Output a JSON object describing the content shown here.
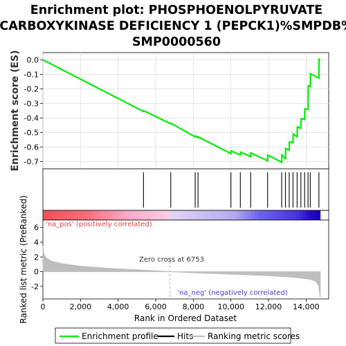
{
  "title_lines": [
    "Enrichment plot: PHOSPHOENOLPYRUVATE",
    "CARBOXYKINASE DEFICIENCY 1 (PEPCK1)%SMPDB%",
    "SMP0000560"
  ],
  "colors": {
    "enrichment_line": "#00ee00",
    "hits": "#000000",
    "metric_fill": "#bebebe",
    "pos_label": "#e04040",
    "neg_label": "#4040d0"
  },
  "chart_data": [
    {
      "type": "line",
      "name": "enrichment-profile",
      "ylabel": "Enrichment score (ES)",
      "xlim": [
        0,
        15200
      ],
      "ylim": [
        -0.75,
        0.05
      ],
      "y_ticks": [
        "0.0",
        "-0.1",
        "-0.2",
        "-0.3",
        "-0.4",
        "-0.5",
        "-0.6",
        "-0.7"
      ],
      "y_tick_values": [
        0.0,
        -0.1,
        -0.2,
        -0.3,
        -0.4,
        -0.5,
        -0.6,
        -0.7
      ],
      "grid": true,
      "points": [
        [
          0,
          0.0
        ],
        [
          5350,
          -0.355
        ],
        [
          5360,
          -0.35
        ],
        [
          6800,
          -0.44
        ],
        [
          6810,
          -0.436
        ],
        [
          8100,
          -0.53
        ],
        [
          8110,
          -0.524
        ],
        [
          8250,
          -0.535
        ],
        [
          8260,
          -0.53
        ],
        [
          10000,
          -0.645
        ],
        [
          10010,
          -0.626
        ],
        [
          10500,
          -0.655
        ],
        [
          10510,
          -0.635
        ],
        [
          11050,
          -0.665
        ],
        [
          11060,
          -0.64
        ],
        [
          11950,
          -0.695
        ],
        [
          11960,
          -0.655
        ],
        [
          12700,
          -0.705
        ],
        [
          12710,
          -0.655
        ],
        [
          12900,
          -0.68
        ],
        [
          12910,
          -0.61
        ],
        [
          13100,
          -0.62
        ],
        [
          13110,
          -0.565
        ],
        [
          13300,
          -0.57
        ],
        [
          13310,
          -0.51
        ],
        [
          13520,
          -0.53
        ],
        [
          13530,
          -0.462
        ],
        [
          13720,
          -0.47
        ],
        [
          13730,
          -0.405
        ],
        [
          13920,
          -0.41
        ],
        [
          13930,
          -0.338
        ],
        [
          14100,
          -0.34
        ],
        [
          14110,
          -0.18
        ],
        [
          14220,
          -0.185
        ],
        [
          14230,
          -0.095
        ],
        [
          14680,
          -0.125
        ],
        [
          14690,
          0.005
        ],
        [
          14750,
          0.0
        ]
      ]
    },
    {
      "type": "bar",
      "name": "hits",
      "hit_positions": [
        5350,
        6800,
        8100,
        8250,
        10000,
        10500,
        11050,
        11950,
        12700,
        12900,
        13100,
        13300,
        13520,
        13720,
        13920,
        14100,
        14220,
        14680
      ]
    },
    {
      "type": "area",
      "name": "ranking-metric",
      "xlabel": "Rank in Ordered Dataset",
      "ylabel": "Ranked list metric (PreRanked)",
      "xlim": [
        0,
        15200
      ],
      "ylim": [
        -3.7,
        7
      ],
      "x_ticks": [
        "0",
        "2,000",
        "4,000",
        "6,000",
        "8,000",
        "10,000",
        "12,000",
        "14,000"
      ],
      "x_tick_values": [
        0,
        2000,
        4000,
        6000,
        8000,
        10000,
        12000,
        14000
      ],
      "y_ticks": [
        "6",
        "4",
        "2",
        "0",
        "-2"
      ],
      "y_tick_values": [
        6,
        4,
        2,
        0,
        -2
      ],
      "zero_cross": 6753,
      "x": [
        0,
        50,
        200,
        500,
        1000,
        2000,
        3000,
        4000,
        5000,
        6000,
        6753,
        8000,
        9000,
        10000,
        11000,
        12000,
        13000,
        13500,
        14000,
        14300,
        14500,
        14650,
        14750
      ],
      "values": [
        3.5,
        2.4,
        1.8,
        1.4,
        1.1,
        0.75,
        0.55,
        0.38,
        0.25,
        0.12,
        0.0,
        -0.15,
        -0.25,
        -0.35,
        -0.45,
        -0.55,
        -0.7,
        -0.8,
        -0.95,
        -1.1,
        -1.3,
        -1.8,
        -3.5
      ]
    }
  ],
  "labels": {
    "x_axis": "Rank in Ordered Dataset",
    "es_axis": "Enrichment score (ES)",
    "metric_axis": "Ranked list metric (PreRanked)",
    "pos_label": "'na_pos' (positively correlated)",
    "neg_label": "'na_neg' (negatively correlated)",
    "zero_cross_label": "Zero cross at 6753"
  },
  "legend": {
    "items": [
      {
        "label": "Enrichment profile",
        "color": "#00ee00"
      },
      {
        "label": "Hits",
        "color": "#000000"
      },
      {
        "label": "Ranking metric scores",
        "color": "#bebebe"
      }
    ]
  }
}
